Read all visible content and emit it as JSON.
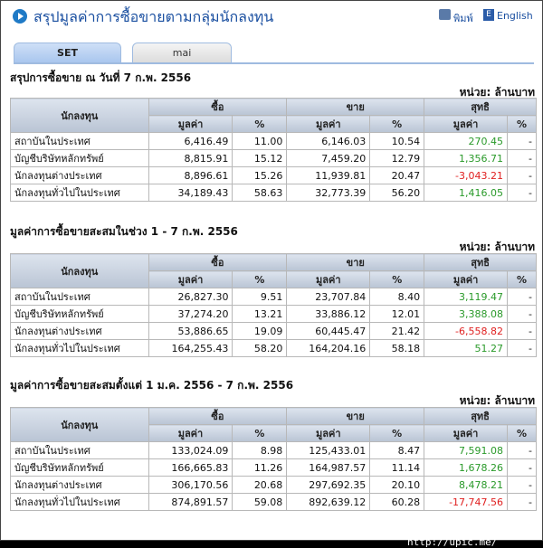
{
  "header": {
    "title": "สรุปมูลค่าการซื้อขายตามกลุ่มนักลงทุน",
    "print_label": "พิมพ์",
    "lang_label": "English",
    "lang_icon_letter": "E"
  },
  "tabs": [
    {
      "label": "SET"
    },
    {
      "label": "mai"
    }
  ],
  "columns": {
    "investor": "นักลงทุน",
    "buy": "ซื้อ",
    "sell": "ขาย",
    "net": "สุทธิ",
    "value": "มูลค่า",
    "percent": "%"
  },
  "unit_label": "หน่วย: ล้านบาท",
  "sections": [
    {
      "title": "สรุปการซื้อขาย ณ วันที่ 7 ก.พ. 2556",
      "rows": [
        {
          "name": "สถาบันในประเทศ",
          "buy_value": "6,416.49",
          "buy_pct": "11.00",
          "sell_value": "6,146.03",
          "sell_pct": "10.54",
          "net_value": "270.45",
          "net_pct": "-",
          "net_sign": "pos"
        },
        {
          "name": "บัญชีบริษัทหลักทรัพย์",
          "buy_value": "8,815.91",
          "buy_pct": "15.12",
          "sell_value": "7,459.20",
          "sell_pct": "12.79",
          "net_value": "1,356.71",
          "net_pct": "-",
          "net_sign": "pos"
        },
        {
          "name": "นักลงทุนต่างประเทศ",
          "buy_value": "8,896.61",
          "buy_pct": "15.26",
          "sell_value": "11,939.81",
          "sell_pct": "20.47",
          "net_value": "-3,043.21",
          "net_pct": "-",
          "net_sign": "neg"
        },
        {
          "name": "นักลงทุนทั่วไปในประเทศ",
          "buy_value": "34,189.43",
          "buy_pct": "58.63",
          "sell_value": "32,773.39",
          "sell_pct": "56.20",
          "net_value": "1,416.05",
          "net_pct": "-",
          "net_sign": "pos"
        }
      ]
    },
    {
      "title": "มูลค่าการซื้อขายสะสมในช่วง 1 - 7 ก.พ. 2556",
      "rows": [
        {
          "name": "สถาบันในประเทศ",
          "buy_value": "26,827.30",
          "buy_pct": "9.51",
          "sell_value": "23,707.84",
          "sell_pct": "8.40",
          "net_value": "3,119.47",
          "net_pct": "-",
          "net_sign": "pos"
        },
        {
          "name": "บัญชีบริษัทหลักทรัพย์",
          "buy_value": "37,274.20",
          "buy_pct": "13.21",
          "sell_value": "33,886.12",
          "sell_pct": "12.01",
          "net_value": "3,388.08",
          "net_pct": "-",
          "net_sign": "pos"
        },
        {
          "name": "นักลงทุนต่างประเทศ",
          "buy_value": "53,886.65",
          "buy_pct": "19.09",
          "sell_value": "60,445.47",
          "sell_pct": "21.42",
          "net_value": "-6,558.82",
          "net_pct": "-",
          "net_sign": "neg"
        },
        {
          "name": "นักลงทุนทั่วไปในประเทศ",
          "buy_value": "164,255.43",
          "buy_pct": "58.20",
          "sell_value": "164,204.16",
          "sell_pct": "58.18",
          "net_value": "51.27",
          "net_pct": "-",
          "net_sign": "pos"
        }
      ]
    },
    {
      "title": "มูลค่าการซื้อขายสะสมตั้งแต่ 1 ม.ค. 2556 - 7 ก.พ. 2556",
      "rows": [
        {
          "name": "สถาบันในประเทศ",
          "buy_value": "133,024.09",
          "buy_pct": "8.98",
          "sell_value": "125,433.01",
          "sell_pct": "8.47",
          "net_value": "7,591.08",
          "net_pct": "-",
          "net_sign": "pos"
        },
        {
          "name": "บัญชีบริษัทหลักทรัพย์",
          "buy_value": "166,665.83",
          "buy_pct": "11.26",
          "sell_value": "164,987.57",
          "sell_pct": "11.14",
          "net_value": "1,678.26",
          "net_pct": "-",
          "net_sign": "pos"
        },
        {
          "name": "นักลงทุนต่างประเทศ",
          "buy_value": "306,170.56",
          "buy_pct": "20.68",
          "sell_value": "297,692.35",
          "sell_pct": "20.10",
          "net_value": "8,478.21",
          "net_pct": "-",
          "net_sign": "pos"
        },
        {
          "name": "นักลงทุนทั่วไปในประเทศ",
          "buy_value": "874,891.57",
          "buy_pct": "59.08",
          "sell_value": "892,639.12",
          "sell_pct": "60.28",
          "net_value": "-17,747.56",
          "net_pct": "-",
          "net_sign": "neg"
        }
      ]
    }
  ],
  "footer": {
    "text": "[606x586] http://upic.me/"
  },
  "colors": {
    "positive": "#2a9a2a",
    "negative": "#e02020",
    "title": "#1a4fa0"
  }
}
